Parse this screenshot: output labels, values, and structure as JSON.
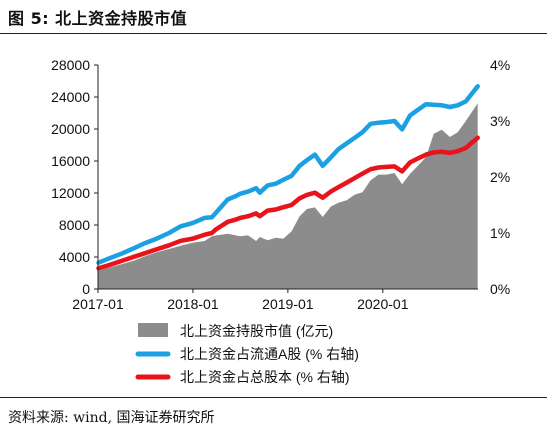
{
  "figure": {
    "title": "图 5:  北上资金持股市值",
    "source": "资料来源: wind, 国海证券研究所"
  },
  "colors": {
    "area": "#8c8c8c",
    "float_line": "#1ba1e2",
    "total_line": "#e8141c",
    "text": "#111111"
  },
  "chart_data": {
    "type": "area",
    "x_tick_labels": [
      "2017-01",
      "2018-01",
      "2019-01",
      "2020-01"
    ],
    "x_ticks": [
      "2017-01",
      "2018-01",
      "2019-01",
      "2020-01"
    ],
    "x_range": [
      "2017-01",
      "2021-01"
    ],
    "y_left": {
      "ticks": [
        0,
        4000,
        8000,
        12000,
        16000,
        20000,
        24000,
        28000
      ],
      "labels": [
        "0",
        "4000",
        "8000",
        "12000",
        "16000",
        "20000",
        "24000",
        "28000"
      ],
      "range": [
        0,
        28000
      ]
    },
    "y_right": {
      "ticks": [
        0,
        1,
        2,
        3,
        4
      ],
      "labels": [
        "0%",
        "1%",
        "2%",
        "3%",
        "4%"
      ],
      "range": [
        0,
        4
      ]
    },
    "legend_position": "bottom",
    "grid": false,
    "series": [
      {
        "name": "北上资金持股市值 (亿元)",
        "type": "area",
        "axis": "left",
        "points": [
          [
            "2017-01-03",
            2300
          ],
          [
            "2017-02-15",
            2700
          ],
          [
            "2017-04-01",
            3100
          ],
          [
            "2017-05-15",
            3500
          ],
          [
            "2017-07-01",
            4100
          ],
          [
            "2017-08-15",
            4600
          ],
          [
            "2017-10-01",
            5000
          ],
          [
            "2017-11-15",
            5400
          ],
          [
            "2018-01-01",
            5800
          ],
          [
            "2018-02-15",
            6000
          ],
          [
            "2018-03-15",
            6600
          ],
          [
            "2018-04-01",
            6700
          ],
          [
            "2018-05-15",
            6900
          ],
          [
            "2018-06-15",
            6700
          ],
          [
            "2018-07-01",
            6600
          ],
          [
            "2018-08-01",
            6700
          ],
          [
            "2018-09-01",
            6000
          ],
          [
            "2018-09-15",
            6500
          ],
          [
            "2018-10-15",
            6100
          ],
          [
            "2018-11-15",
            6400
          ],
          [
            "2018-12-15",
            6300
          ],
          [
            "2019-01-15",
            7200
          ],
          [
            "2019-02-15",
            9100
          ],
          [
            "2019-03-15",
            10000
          ],
          [
            "2019-04-15",
            10200
          ],
          [
            "2019-05-15",
            9000
          ],
          [
            "2019-06-15",
            10300
          ],
          [
            "2019-07-15",
            10800
          ],
          [
            "2019-08-15",
            11100
          ],
          [
            "2019-09-15",
            11800
          ],
          [
            "2019-10-15",
            12100
          ],
          [
            "2019-11-15",
            13600
          ],
          [
            "2019-12-15",
            14300
          ],
          [
            "2020-01-15",
            14300
          ],
          [
            "2020-02-15",
            14500
          ],
          [
            "2020-03-15",
            13100
          ],
          [
            "2020-04-15",
            14400
          ],
          [
            "2020-05-15",
            15400
          ],
          [
            "2020-06-15",
            16500
          ],
          [
            "2020-07-15",
            19400
          ],
          [
            "2020-08-15",
            19900
          ],
          [
            "2020-09-15",
            19000
          ],
          [
            "2020-10-15",
            19600
          ],
          [
            "2020-11-15",
            21000
          ],
          [
            "2020-12-31",
            23200
          ]
        ]
      },
      {
        "name": "北上资金占流通A股 (% 右轴)",
        "type": "line",
        "axis": "right",
        "points": [
          [
            "2017-01-03",
            0.47
          ],
          [
            "2017-02-15",
            0.55
          ],
          [
            "2017-04-01",
            0.63
          ],
          [
            "2017-05-15",
            0.72
          ],
          [
            "2017-07-01",
            0.82
          ],
          [
            "2017-08-15",
            0.9
          ],
          [
            "2017-10-01",
            1.0
          ],
          [
            "2017-11-15",
            1.12
          ],
          [
            "2018-01-01",
            1.18
          ],
          [
            "2018-02-15",
            1.27
          ],
          [
            "2018-03-15",
            1.28
          ],
          [
            "2018-04-01",
            1.37
          ],
          [
            "2018-05-15",
            1.6
          ],
          [
            "2018-06-15",
            1.66
          ],
          [
            "2018-07-01",
            1.7
          ],
          [
            "2018-08-01",
            1.74
          ],
          [
            "2018-09-01",
            1.8
          ],
          [
            "2018-09-15",
            1.72
          ],
          [
            "2018-10-15",
            1.85
          ],
          [
            "2018-11-15",
            1.88
          ],
          [
            "2018-12-15",
            1.95
          ],
          [
            "2019-01-15",
            2.02
          ],
          [
            "2019-02-15",
            2.2
          ],
          [
            "2019-03-15",
            2.3
          ],
          [
            "2019-04-15",
            2.4
          ],
          [
            "2019-05-15",
            2.2
          ],
          [
            "2019-06-15",
            2.35
          ],
          [
            "2019-07-15",
            2.5
          ],
          [
            "2019-08-15",
            2.6
          ],
          [
            "2019-09-15",
            2.7
          ],
          [
            "2019-10-15",
            2.8
          ],
          [
            "2019-11-15",
            2.95
          ],
          [
            "2019-12-15",
            2.97
          ],
          [
            "2020-01-15",
            2.98
          ],
          [
            "2020-02-15",
            3.0
          ],
          [
            "2020-03-15",
            2.85
          ],
          [
            "2020-04-15",
            3.1
          ],
          [
            "2020-05-15",
            3.2
          ],
          [
            "2020-06-15",
            3.3
          ],
          [
            "2020-07-15",
            3.29
          ],
          [
            "2020-08-15",
            3.28
          ],
          [
            "2020-09-15",
            3.25
          ],
          [
            "2020-10-15",
            3.28
          ],
          [
            "2020-11-15",
            3.35
          ],
          [
            "2020-12-31",
            3.62
          ]
        ]
      },
      {
        "name": "北上资金占总股本 (% 右轴)",
        "type": "line",
        "axis": "right",
        "points": [
          [
            "2017-01-03",
            0.37
          ],
          [
            "2017-02-15",
            0.43
          ],
          [
            "2017-04-01",
            0.5
          ],
          [
            "2017-05-15",
            0.57
          ],
          [
            "2017-07-01",
            0.64
          ],
          [
            "2017-08-15",
            0.71
          ],
          [
            "2017-10-01",
            0.78
          ],
          [
            "2017-11-15",
            0.86
          ],
          [
            "2018-01-01",
            0.9
          ],
          [
            "2018-02-15",
            0.97
          ],
          [
            "2018-03-15",
            1.0
          ],
          [
            "2018-04-01",
            1.07
          ],
          [
            "2018-05-15",
            1.2
          ],
          [
            "2018-06-15",
            1.24
          ],
          [
            "2018-07-01",
            1.27
          ],
          [
            "2018-08-01",
            1.3
          ],
          [
            "2018-09-01",
            1.35
          ],
          [
            "2018-09-15",
            1.3
          ],
          [
            "2018-10-15",
            1.4
          ],
          [
            "2018-11-15",
            1.42
          ],
          [
            "2018-12-15",
            1.46
          ],
          [
            "2019-01-15",
            1.5
          ],
          [
            "2019-02-15",
            1.62
          ],
          [
            "2019-03-15",
            1.68
          ],
          [
            "2019-04-15",
            1.72
          ],
          [
            "2019-05-15",
            1.63
          ],
          [
            "2019-06-15",
            1.74
          ],
          [
            "2019-07-15",
            1.82
          ],
          [
            "2019-08-15",
            1.9
          ],
          [
            "2019-09-15",
            1.98
          ],
          [
            "2019-10-15",
            2.06
          ],
          [
            "2019-11-15",
            2.14
          ],
          [
            "2019-12-15",
            2.17
          ],
          [
            "2020-01-15",
            2.18
          ],
          [
            "2020-02-15",
            2.19
          ],
          [
            "2020-03-15",
            2.1
          ],
          [
            "2020-04-15",
            2.26
          ],
          [
            "2020-05-15",
            2.33
          ],
          [
            "2020-06-15",
            2.4
          ],
          [
            "2020-07-15",
            2.44
          ],
          [
            "2020-08-15",
            2.45
          ],
          [
            "2020-09-15",
            2.43
          ],
          [
            "2020-10-15",
            2.46
          ],
          [
            "2020-11-15",
            2.52
          ],
          [
            "2020-12-31",
            2.7
          ]
        ]
      }
    ]
  }
}
